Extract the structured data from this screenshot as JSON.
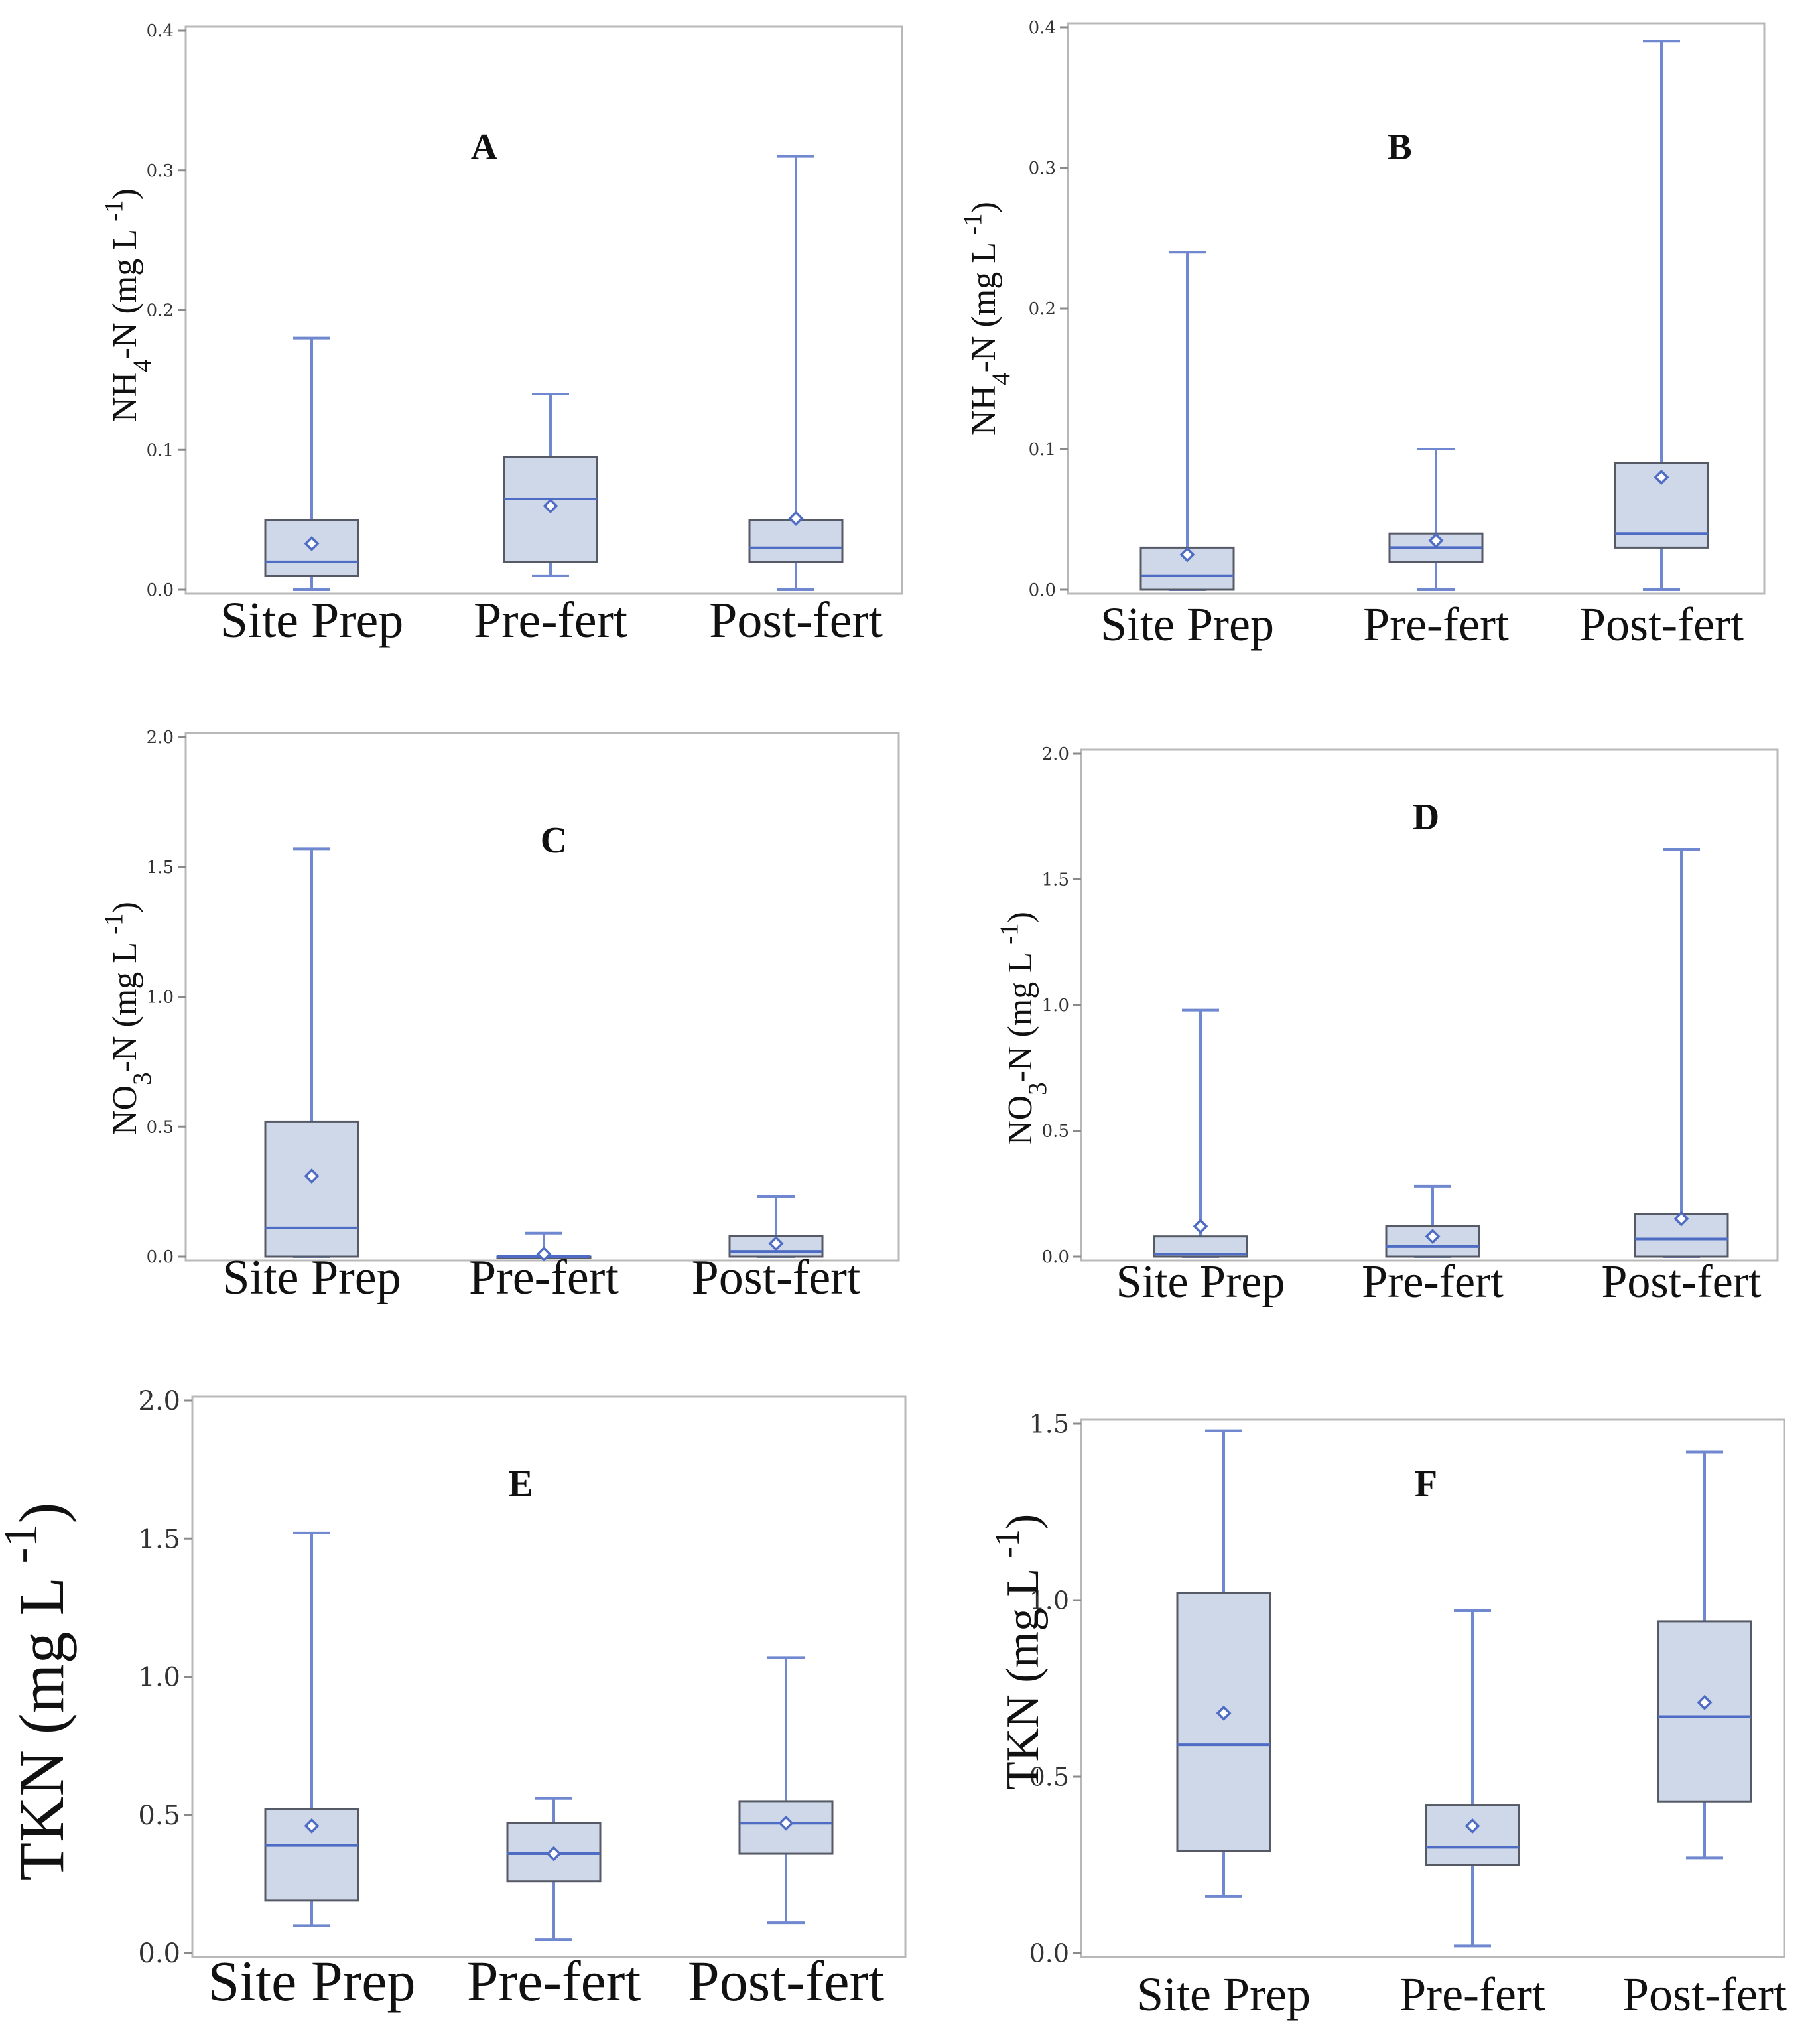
{
  "colors": {
    "box_fill": "#cfd8e8",
    "box_edge": "#555a66",
    "whisker": "#6f88cf",
    "median": "#4f6cc4",
    "frame": "#b8b8b8"
  },
  "chart_data": [
    {
      "type": "box",
      "panel": "A",
      "ylabel": "NH4-N (mg L-1)",
      "ylim": [
        0,
        0.4
      ],
      "yticks": [
        "0.0",
        "0.1",
        "0.2",
        "0.3",
        "0.4"
      ],
      "categories": [
        "Site Prep",
        "Pre-fert",
        "Post-fert"
      ],
      "boxes": [
        {
          "whisker_low": 0.0,
          "q1": 0.01,
          "median": 0.02,
          "q3": 0.05,
          "whisker_high": 0.18,
          "mean": 0.033
        },
        {
          "whisker_low": 0.01,
          "q1": 0.02,
          "median": 0.065,
          "q3": 0.095,
          "whisker_high": 0.14,
          "mean": 0.06
        },
        {
          "whisker_low": 0.0,
          "q1": 0.02,
          "median": 0.03,
          "q3": 0.05,
          "whisker_high": 0.31,
          "mean": 0.051
        }
      ]
    },
    {
      "type": "box",
      "panel": "B",
      "ylabel": "NH4-N (mg L-1)",
      "ylim": [
        0,
        0.4
      ],
      "yticks": [
        "0.0",
        "0.1",
        "0.2",
        "0.3",
        "0.4"
      ],
      "categories": [
        "Site Prep",
        "Pre-fert",
        "Post-fert"
      ],
      "boxes": [
        {
          "whisker_low": 0.0,
          "q1": 0.0,
          "median": 0.01,
          "q3": 0.03,
          "whisker_high": 0.24,
          "mean": 0.025
        },
        {
          "whisker_low": 0.0,
          "q1": 0.02,
          "median": 0.03,
          "q3": 0.04,
          "whisker_high": 0.1,
          "mean": 0.035
        },
        {
          "whisker_low": 0.0,
          "q1": 0.03,
          "median": 0.04,
          "q3": 0.09,
          "whisker_high": 0.39,
          "mean": 0.08
        }
      ]
    },
    {
      "type": "box",
      "panel": "C",
      "ylabel": "NO3-N (mg L-1)",
      "ylim": [
        0,
        2.0
      ],
      "yticks": [
        "0.0",
        "0.5",
        "1.0",
        "1.5",
        "2.0"
      ],
      "categories": [
        "Site Prep",
        "Pre-fert",
        "Post-fert"
      ],
      "boxes": [
        {
          "whisker_low": 0.0,
          "q1": 0.0,
          "median": 0.11,
          "q3": 0.52,
          "whisker_high": 1.57,
          "mean": 0.31
        },
        {
          "whisker_low": 0.0,
          "q1": 0.0,
          "median": 0.0,
          "q3": 0.0,
          "whisker_high": 0.09,
          "mean": 0.01
        },
        {
          "whisker_low": 0.0,
          "q1": 0.0,
          "median": 0.02,
          "q3": 0.08,
          "whisker_high": 0.23,
          "mean": 0.05
        }
      ]
    },
    {
      "type": "box",
      "panel": "D",
      "ylabel": "NO3-N (mg L-1)",
      "ylim": [
        0,
        2.0
      ],
      "yticks": [
        "0.0",
        "0.5",
        "1.0",
        "1.5",
        "2.0"
      ],
      "categories": [
        "Site Prep",
        "Pre-fert",
        "Post-fert"
      ],
      "boxes": [
        {
          "whisker_low": 0.0,
          "q1": 0.0,
          "median": 0.01,
          "q3": 0.08,
          "whisker_high": 0.98,
          "mean": 0.12
        },
        {
          "whisker_low": 0.0,
          "q1": 0.0,
          "median": 0.04,
          "q3": 0.12,
          "whisker_high": 0.28,
          "mean": 0.08
        },
        {
          "whisker_low": 0.0,
          "q1": 0.0,
          "median": 0.07,
          "q3": 0.17,
          "whisker_high": 1.62,
          "mean": 0.15
        }
      ]
    },
    {
      "type": "box",
      "panel": "E",
      "ylabel": "TKN (mg L-1)",
      "ylim": [
        0,
        2.0
      ],
      "yticks": [
        "0.0",
        "0.5",
        "1.0",
        "1.5",
        "2.0"
      ],
      "categories": [
        "Site Prep",
        "Pre-fert",
        "Post-fert"
      ],
      "boxes": [
        {
          "whisker_low": 0.1,
          "q1": 0.19,
          "median": 0.39,
          "q3": 0.52,
          "whisker_high": 1.52,
          "mean": 0.46
        },
        {
          "whisker_low": 0.05,
          "q1": 0.26,
          "median": 0.36,
          "q3": 0.47,
          "whisker_high": 0.56,
          "mean": 0.36
        },
        {
          "whisker_low": 0.11,
          "q1": 0.36,
          "median": 0.47,
          "q3": 0.55,
          "whisker_high": 1.07,
          "mean": 0.47
        }
      ]
    },
    {
      "type": "box",
      "panel": "F",
      "ylabel": "TKN (mg L-1)",
      "ylim": [
        0,
        1.5
      ],
      "yticks": [
        "0.0",
        "0.5",
        "1.0",
        "1.5"
      ],
      "categories": [
        "Site Prep",
        "Pre-fert",
        "Post-fert"
      ],
      "boxes": [
        {
          "whisker_low": 0.16,
          "q1": 0.29,
          "median": 0.59,
          "q3": 1.02,
          "whisker_high": 1.48,
          "mean": 0.68
        },
        {
          "whisker_low": 0.02,
          "q1": 0.25,
          "median": 0.3,
          "q3": 0.42,
          "whisker_high": 0.97,
          "mean": 0.36
        },
        {
          "whisker_low": 0.27,
          "q1": 0.43,
          "median": 0.67,
          "q3": 0.94,
          "whisker_high": 1.42,
          "mean": 0.71
        }
      ]
    }
  ]
}
